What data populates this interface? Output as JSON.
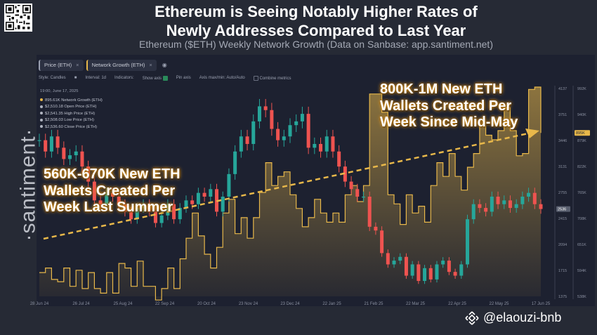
{
  "header": {
    "title_line1": "Ethereum is Seeing Notably Higher Rates of",
    "title_line2": "Newly Addresses Compared to Last Year",
    "subtitle": "Ethereum ($ETH) Weekly Network Growth (Data on Sanbase: app.santiment.net)"
  },
  "tabs": [
    {
      "label": "Price (ETH)",
      "close": "×"
    },
    {
      "label": "Network Growth (ETH)",
      "close": "×"
    }
  ],
  "toolbar": {
    "style": "Style: Candles",
    "interval": "Interval: 1d",
    "indicators": "Indicators:",
    "show_axis": "Show axis",
    "pin_axis": "Pin axis",
    "axis_minmax": "Axis max/min: Auto/Auto",
    "combine": "Combine metrics"
  },
  "tooltip": {
    "date": "19:00, June 17, 2025",
    "rows": [
      {
        "color": "#e8b84a",
        "text": "895.61K Network Growth (ETH)"
      },
      {
        "color": "#b0b4c0",
        "text": "$2,510.18 Open Price (ETH)"
      },
      {
        "color": "#b0b4c0",
        "text": "$2,541.35 High Price (ETH)"
      },
      {
        "color": "#b0b4c0",
        "text": "$2,508.03 Low Price (ETH)"
      },
      {
        "color": "#b0b4c0",
        "text": "$2,536.60 Close Price (ETH)"
      }
    ]
  },
  "annotations": {
    "left": [
      "560K-670K New ETH",
      "Wallets Created Per",
      "Week Last Summer"
    ],
    "right": [
      "800K-1M New ETH",
      "Wallets Created Per",
      "Week Since Mid-May"
    ]
  },
  "brand": "·santiment·",
  "handle": "@elaouzi-bnb",
  "colors": {
    "network": "#e8b84a",
    "up": "#26a69a",
    "down": "#ef5350"
  },
  "chart_data": {
    "type": "line",
    "x_ticks": [
      "28 Jun 24",
      "26 Jul 24",
      "25 Aug 24",
      "22 Sep 24",
      "20 Oct 24",
      "23 Nov 24",
      "23 Dec 24",
      "22 Jan 25",
      "21 Feb 25",
      "22 Mar 25",
      "22 Apr 25",
      "22 May 25",
      "17 Jun 25"
    ],
    "price_axis_ticks": [
      4137,
      3751,
      3446,
      3131,
      2755,
      2415,
      2094,
      1715,
      1375
    ],
    "price_axis_range": [
      1375,
      4137
    ],
    "network_axis_ticks": [
      "992K",
      "940K",
      "879K",
      "822K",
      "765K",
      "708K",
      "651K",
      "594K",
      "538K"
    ],
    "network_axis_range": [
      538,
      992
    ],
    "current_price_label": "2536",
    "current_network_label": "895K",
    "network_growth_k": [
      590,
      600,
      575,
      570,
      600,
      560,
      595,
      555,
      590,
      555,
      545,
      590,
      545,
      610,
      600,
      560,
      615,
      560,
      560,
      530,
      555,
      600,
      555,
      620,
      665,
      720,
      670,
      630,
      600,
      645,
      720,
      750,
      675,
      710,
      665,
      710,
      765,
      830,
      780,
      800,
      810,
      760,
      730,
      690,
      710,
      750,
      720,
      700,
      720,
      700,
      760,
      780,
      745,
      780,
      980,
      980,
      940,
      760,
      740,
      695,
      760,
      720,
      735,
      700,
      780,
      830,
      800,
      850,
      800,
      770,
      820,
      850,
      910,
      890,
      880,
      900,
      950,
      900,
      845,
      850,
      990,
      995,
      895
    ],
    "price_series": [
      {
        "name": "Price (ETH)",
        "close": [
          3450,
          3300,
          3500,
          3350,
          3200,
          3250,
          3300,
          3100,
          2900,
          2650,
          2600,
          2750,
          2700,
          2600,
          2500,
          2400,
          2550,
          2600,
          2500,
          2350,
          2450,
          2600,
          2400,
          2550,
          2650,
          2600,
          2750,
          2700,
          2800,
          2500,
          2700,
          3000,
          3300,
          3500,
          3400,
          3700,
          3900,
          3850,
          3600,
          3450,
          3500,
          3650,
          3700,
          3800,
          3350,
          3400,
          3300,
          3500,
          3300,
          3100,
          2900,
          2800,
          2700,
          2700,
          2300,
          2250,
          1950,
          1800,
          1850,
          1900,
          1650,
          1800,
          1580,
          1750,
          1600,
          1800,
          1850,
          1700,
          1650,
          1800,
          2400,
          2600,
          2550,
          2500,
          2700,
          2600,
          2650,
          2550,
          2600,
          2700,
          2750,
          2600,
          2536
        ]
      }
    ]
  }
}
